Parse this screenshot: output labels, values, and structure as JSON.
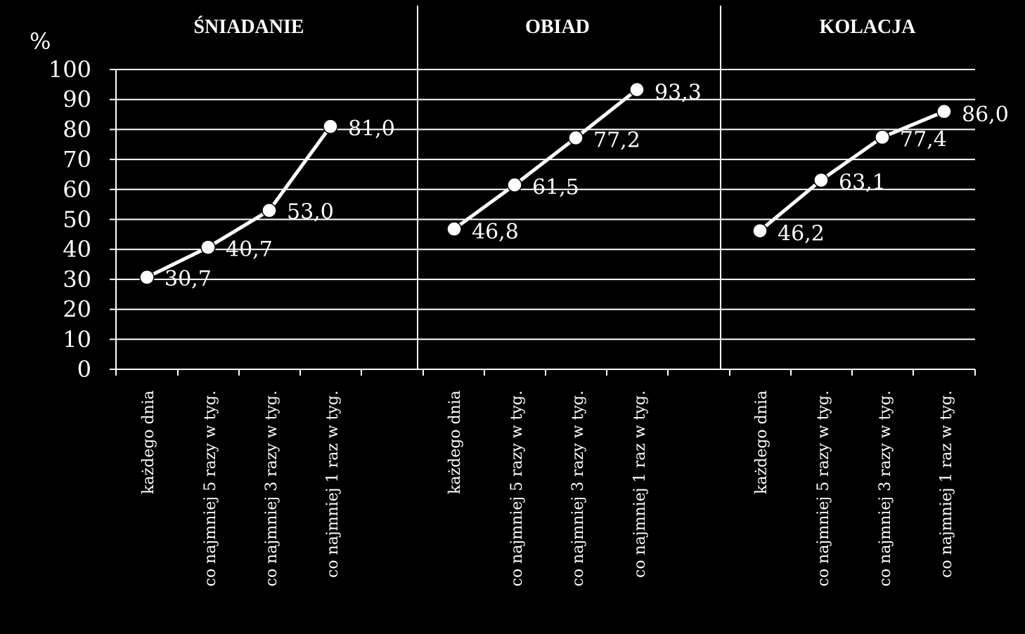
{
  "chart_data": {
    "type": "line",
    "ylabel": "%",
    "ylim": [
      0,
      100
    ],
    "yticks": [
      0,
      10,
      20,
      30,
      40,
      50,
      60,
      70,
      80,
      90,
      100
    ],
    "ytick_labels": [
      "0",
      "10",
      "20",
      "30",
      "40",
      "50",
      "60",
      "70",
      "80",
      "90",
      "100"
    ],
    "grid": true,
    "line_color": "#ffffff",
    "background": "#000000",
    "categories": [
      "każdego dnia",
      "co najmniej 5 razy w tyg.",
      "co najmniej 3 razy w tyg.",
      "co najmniej 1 raz w tyg."
    ],
    "panels": [
      {
        "title": "ŚNIADANIE",
        "values": [
          30.7,
          40.7,
          53.0,
          81.0
        ],
        "labels": [
          "30,7",
          "40,7",
          "53,0",
          "81,0"
        ]
      },
      {
        "title": "OBIAD",
        "values": [
          46.8,
          61.5,
          77.2,
          93.3
        ],
        "labels": [
          "46,8",
          "61,5",
          "77,2",
          "93,3"
        ]
      },
      {
        "title": "KOLACJA",
        "values": [
          46.2,
          63.1,
          77.4,
          86.0
        ],
        "labels": [
          "46,2",
          "63,1",
          "77,4",
          "86,0"
        ]
      }
    ]
  }
}
